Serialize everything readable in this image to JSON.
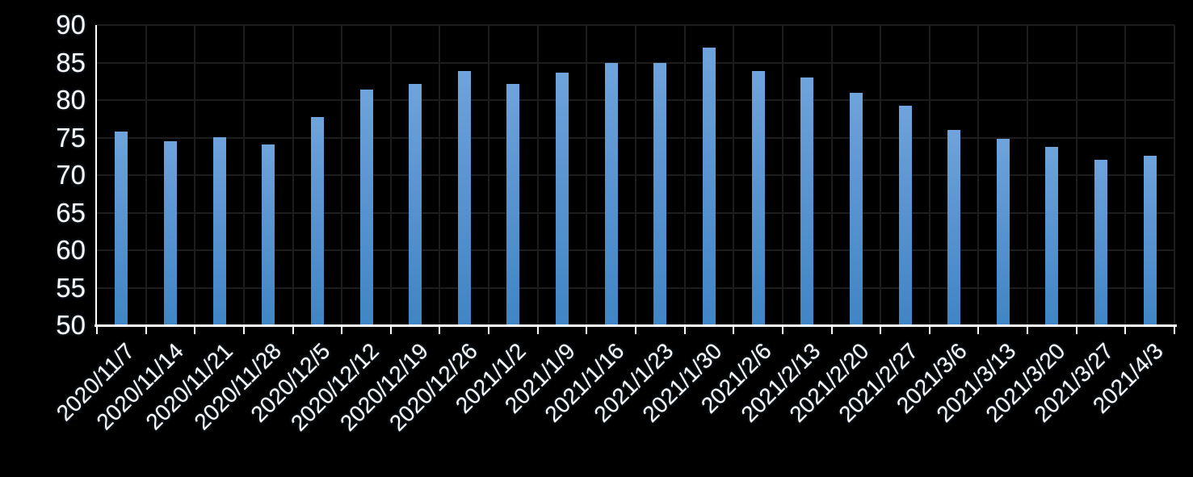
{
  "chart_data": {
    "type": "bar",
    "title": "",
    "xlabel": "",
    "ylabel": "",
    "categories": [
      "2020/11/7",
      "2020/11/14",
      "2020/11/21",
      "2020/11/28",
      "2020/12/5",
      "2020/12/12",
      "2020/12/19",
      "2020/12/26",
      "2021/1/2",
      "2021/1/9",
      "2021/1/16",
      "2021/1/23",
      "2021/1/30",
      "2021/2/6",
      "2021/2/13",
      "2021/2/20",
      "2021/2/27",
      "2021/3/6",
      "2021/3/13",
      "2021/3/20",
      "2021/3/27",
      "2021/4/3"
    ],
    "values": [
      75.7,
      74.4,
      75.0,
      74.0,
      77.6,
      81.3,
      82.0,
      83.8,
      82.0,
      83.6,
      84.8,
      84.8,
      86.9,
      83.8,
      82.9,
      80.9,
      79.1,
      75.9,
      74.7,
      73.7,
      71.9,
      72.5
    ],
    "yticks": [
      90,
      85,
      80,
      75,
      70,
      65,
      60,
      55,
      50
    ],
    "ylim": [
      50,
      90
    ],
    "ytick_step": 5,
    "grid": true,
    "legend": "none",
    "colors": {
      "background": "#000000",
      "bar_top": "#6FA3DB",
      "bar_bottom": "#4085C5",
      "gridline": "#1d1d1d",
      "axis": "#FFFFFF",
      "text": "#FFFFFF"
    }
  }
}
